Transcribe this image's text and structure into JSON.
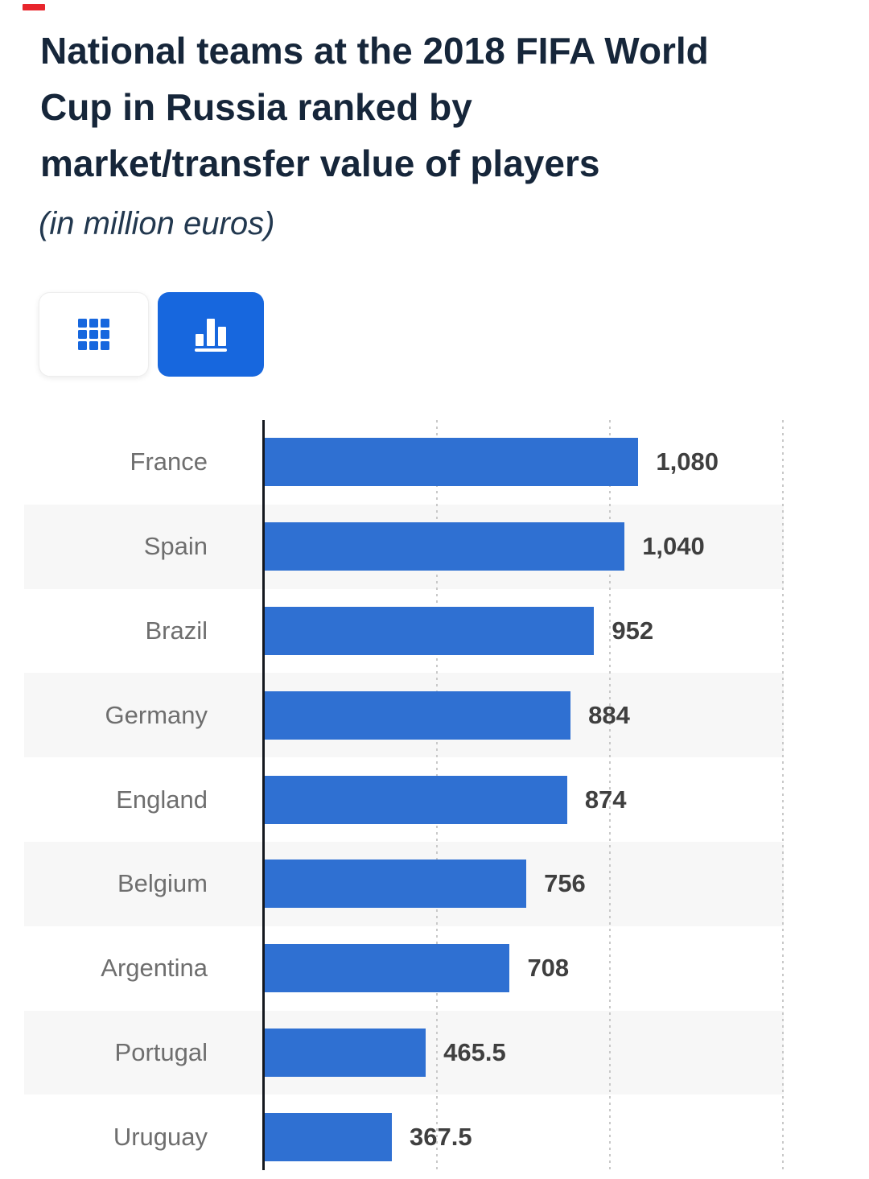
{
  "marker": {
    "color": "#e8252c"
  },
  "header": {
    "title_lines": [
      "National teams at the 2018 FIFA World",
      "Cup in Russia ranked by",
      "market/transfer value of players"
    ],
    "subtitle": "(in million euros)",
    "title_color": "#16263a"
  },
  "toolbar": {
    "buttons": [
      {
        "name": "table-view",
        "icon": "grid-icon",
        "active": false
      },
      {
        "name": "chart-view",
        "icon": "bar-chart-icon",
        "active": true
      }
    ],
    "active_color": "#1767de"
  },
  "chart_data": {
    "type": "bar",
    "orientation": "horizontal",
    "title": "National teams at the 2018 FIFA World Cup in Russia ranked by market/transfer value of players",
    "subtitle": "(in million euros)",
    "unit": "million euros",
    "categories": [
      "France",
      "Spain",
      "Brazil",
      "Germany",
      "England",
      "Belgium",
      "Argentina",
      "Portugal",
      "Uruguay"
    ],
    "values": [
      1080,
      1040,
      952,
      884,
      874,
      756,
      708,
      465.5,
      367.5
    ],
    "value_labels": [
      "1,080",
      "1,040",
      "952",
      "884",
      "874",
      "756",
      "708",
      "465.5",
      "367.5"
    ],
    "xlim": [
      0,
      1500
    ],
    "gridlines_x": [
      500,
      1000,
      1500
    ],
    "grid_style": "dotted",
    "legend": "none",
    "bar_color": "#2f70d2",
    "stripe_color": "#f7f7f7",
    "label_color": "#6e6e6e",
    "value_color": "#3f3f3f"
  }
}
